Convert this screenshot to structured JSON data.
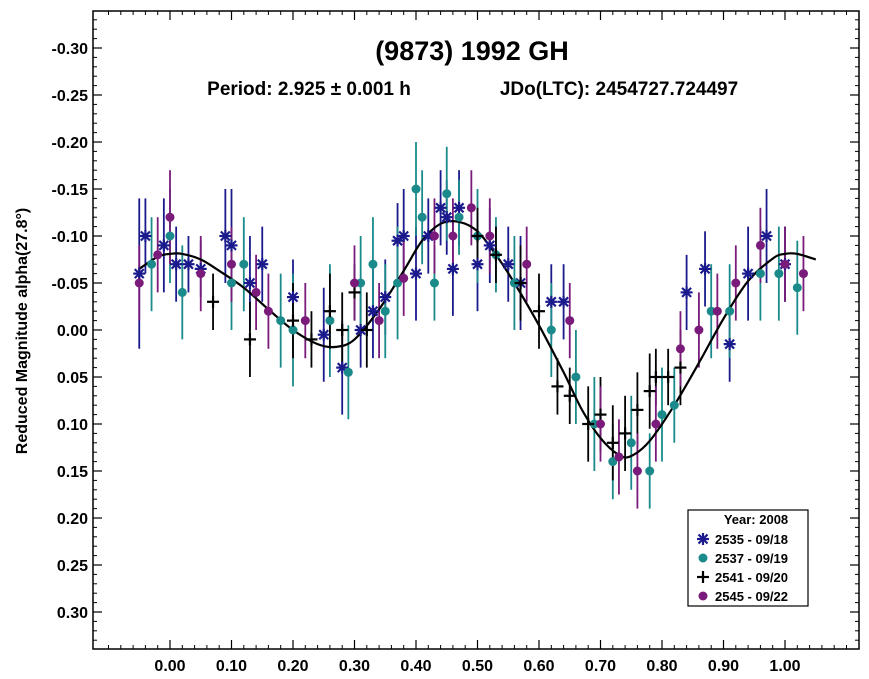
{
  "chart_data": {
    "type": "scatter",
    "title": "(9873) 1992 GH",
    "subtitle_period": "Period: 2.925 ± 0.001 h",
    "subtitle_epoch": "JDo(LTC): 2454727.724497",
    "ylabel": "Reduced Magnitude alpha(27.8°)",
    "xlabel": "",
    "xlim": [
      -0.125,
      1.12
    ],
    "ylim": [
      -0.34,
      0.34
    ],
    "y_inverted": true,
    "x_ticks": [
      "0.00",
      "0.10",
      "0.20",
      "0.30",
      "0.40",
      "0.50",
      "0.60",
      "0.70",
      "0.80",
      "0.90",
      "1.00"
    ],
    "x_tick_values": [
      0,
      0.1,
      0.2,
      0.3,
      0.4,
      0.5,
      0.6,
      0.7,
      0.8,
      0.9,
      1.0
    ],
    "y_ticks": [
      "-0.30",
      "-0.25",
      "-0.20",
      "-0.15",
      "-0.10",
      "-0.05",
      "0.00",
      "0.05",
      "0.10",
      "0.15",
      "0.20",
      "0.25",
      "0.30"
    ],
    "y_tick_values": [
      -0.3,
      -0.25,
      -0.2,
      -0.15,
      -0.1,
      -0.05,
      0.0,
      0.05,
      0.1,
      0.15,
      0.2,
      0.25,
      0.3
    ],
    "legend": {
      "title": "Year: 2008",
      "placement": "bottom-right",
      "entries": [
        {
          "label": "2535 - 09/18",
          "marker": "asterisk",
          "color": "#1a1a8c"
        },
        {
          "label": "2537 - 09/19",
          "marker": "circle",
          "color": "#1a8a8a"
        },
        {
          "label": "2541 - 09/20",
          "marker": "plus",
          "color": "#000000"
        },
        {
          "label": "2545 - 09/22",
          "marker": "circle",
          "color": "#7a1a7a"
        }
      ]
    },
    "fit_curve": {
      "x": [
        -0.05,
        -0.02,
        0.0,
        0.02,
        0.05,
        0.08,
        0.12,
        0.16,
        0.2,
        0.24,
        0.27,
        0.3,
        0.34,
        0.38,
        0.41,
        0.44,
        0.47,
        0.5,
        0.53,
        0.56,
        0.6,
        0.64,
        0.67,
        0.7,
        0.73,
        0.75,
        0.78,
        0.82,
        0.86,
        0.9,
        0.94,
        0.98,
        1.0,
        1.02,
        1.05
      ],
      "y": [
        -0.065,
        -0.078,
        -0.081,
        -0.081,
        -0.075,
        -0.063,
        -0.045,
        -0.022,
        0.0,
        0.015,
        0.018,
        0.01,
        -0.022,
        -0.063,
        -0.095,
        -0.113,
        -0.115,
        -0.105,
        -0.08,
        -0.05,
        -0.005,
        0.045,
        0.085,
        0.115,
        0.133,
        0.134,
        0.118,
        0.08,
        0.035,
        -0.012,
        -0.052,
        -0.076,
        -0.081,
        -0.081,
        -0.075
      ]
    },
    "series": [
      {
        "name": "2535 - 09/18",
        "x": [
          -0.05,
          -0.04,
          -0.01,
          0.01,
          0.03,
          0.05,
          0.09,
          0.1,
          0.13,
          0.15,
          0.2,
          0.25,
          0.28,
          0.31,
          0.33,
          0.35,
          0.37,
          0.38,
          0.4,
          0.42,
          0.44,
          0.45,
          0.46,
          0.47,
          0.5,
          0.52,
          0.55,
          0.57,
          0.62,
          0.64,
          0.84,
          0.87,
          0.91,
          0.94,
          0.97,
          1.0
        ],
        "y": [
          -0.06,
          -0.1,
          -0.09,
          -0.07,
          -0.07,
          -0.065,
          -0.1,
          -0.09,
          -0.05,
          -0.07,
          -0.035,
          0.005,
          0.04,
          0.0,
          -0.02,
          -0.035,
          -0.095,
          -0.1,
          -0.06,
          -0.1,
          -0.13,
          -0.12,
          -0.065,
          -0.13,
          -0.07,
          -0.09,
          -0.07,
          -0.05,
          -0.03,
          -0.03,
          -0.04,
          -0.065,
          0.015,
          -0.06,
          -0.1,
          -0.07
        ],
        "err": [
          0.08,
          0.04,
          0.05,
          0.04,
          0.03,
          0.03,
          0.05,
          0.06,
          0.05,
          0.04,
          0.04,
          0.05,
          0.05,
          0.04,
          0.05,
          0.04,
          0.04,
          0.05,
          0.05,
          0.04,
          0.04,
          0.04,
          0.05,
          0.04,
          0.05,
          0.04,
          0.04,
          0.05,
          0.04,
          0.04,
          0.04,
          0.04,
          0.04,
          0.05,
          0.05,
          0.04
        ]
      },
      {
        "name": "2537 - 09/19",
        "x": [
          -0.03,
          0.0,
          0.02,
          0.1,
          0.12,
          0.18,
          0.2,
          0.26,
          0.29,
          0.31,
          0.33,
          0.35,
          0.37,
          0.4,
          0.41,
          0.43,
          0.45,
          0.47,
          0.5,
          0.53,
          0.56,
          0.62,
          0.66,
          0.69,
          0.72,
          0.75,
          0.78,
          0.8,
          0.82,
          0.88,
          0.91,
          0.96,
          0.99,
          1.02
        ],
        "y": [
          -0.07,
          -0.1,
          -0.04,
          -0.05,
          -0.07,
          -0.01,
          0.0,
          -0.01,
          0.045,
          -0.05,
          -0.07,
          -0.02,
          -0.05,
          -0.15,
          -0.12,
          -0.05,
          -0.145,
          -0.12,
          -0.1,
          -0.08,
          -0.05,
          0.0,
          0.05,
          0.1,
          0.14,
          0.12,
          0.15,
          0.09,
          0.08,
          -0.02,
          -0.02,
          -0.06,
          -0.06,
          -0.045
        ],
        "err": [
          0.05,
          0.05,
          0.05,
          0.05,
          0.05,
          0.05,
          0.06,
          0.06,
          0.05,
          0.05,
          0.05,
          0.05,
          0.06,
          0.05,
          0.05,
          0.04,
          0.05,
          0.04,
          0.05,
          0.04,
          0.05,
          0.05,
          0.05,
          0.05,
          0.04,
          0.05,
          0.04,
          0.05,
          0.04,
          0.05,
          0.05,
          0.05,
          0.05,
          0.05
        ]
      },
      {
        "name": "2541 - 09/20",
        "x": [
          0.07,
          0.13,
          0.2,
          0.23,
          0.26,
          0.28,
          0.3,
          0.32,
          0.5,
          0.53,
          0.57,
          0.6,
          0.63,
          0.65,
          0.68,
          0.7,
          0.72,
          0.74,
          0.76,
          0.78,
          0.79,
          0.81,
          0.83
        ],
        "y": [
          -0.03,
          0.01,
          -0.01,
          0.01,
          -0.02,
          0.0,
          -0.04,
          0.0,
          -0.1,
          -0.08,
          -0.05,
          -0.02,
          0.06,
          0.07,
          0.1,
          0.09,
          0.12,
          0.11,
          0.085,
          0.065,
          0.05,
          0.05,
          0.04
        ],
        "err": [
          0.03,
          0.04,
          0.04,
          0.03,
          0.04,
          0.04,
          0.03,
          0.04,
          0.03,
          0.03,
          0.04,
          0.04,
          0.03,
          0.03,
          0.04,
          0.04,
          0.04,
          0.04,
          0.04,
          0.04,
          0.03,
          0.03,
          0.04
        ]
      },
      {
        "name": "2545 - 09/22",
        "x": [
          -0.05,
          -0.02,
          0.0,
          0.05,
          0.1,
          0.14,
          0.16,
          0.22,
          0.3,
          0.34,
          0.38,
          0.43,
          0.46,
          0.49,
          0.52,
          0.58,
          0.65,
          0.7,
          0.73,
          0.76,
          0.79,
          0.83,
          0.86,
          0.89,
          0.92,
          0.96,
          1.0,
          1.03
        ],
        "y": [
          -0.05,
          -0.08,
          -0.12,
          -0.06,
          -0.07,
          -0.04,
          -0.02,
          -0.01,
          -0.05,
          -0.01,
          -0.055,
          -0.1,
          -0.1,
          -0.13,
          -0.1,
          -0.07,
          -0.01,
          0.1,
          0.135,
          0.15,
          0.1,
          0.02,
          0.0,
          -0.02,
          -0.05,
          -0.09,
          -0.07,
          -0.06
        ],
        "err": [
          0.04,
          0.04,
          0.05,
          0.04,
          0.04,
          0.04,
          0.04,
          0.04,
          0.04,
          0.04,
          0.04,
          0.04,
          0.04,
          0.04,
          0.04,
          0.04,
          0.04,
          0.04,
          0.04,
          0.04,
          0.04,
          0.04,
          0.04,
          0.04,
          0.04,
          0.04,
          0.04,
          0.04
        ]
      }
    ]
  }
}
